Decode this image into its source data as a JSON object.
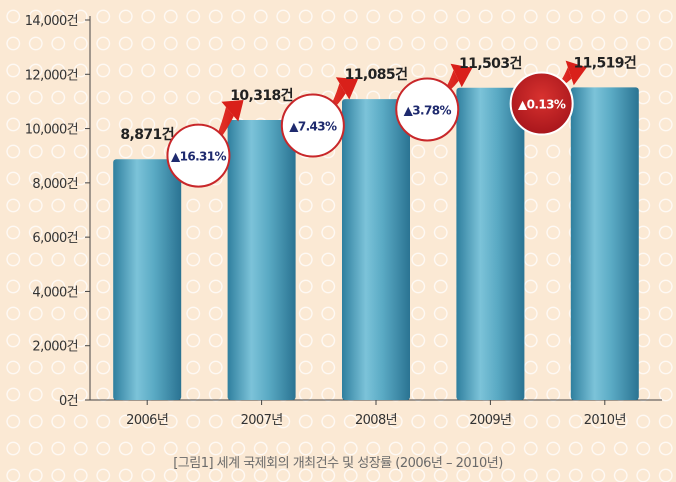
{
  "chart_data": {
    "type": "bar",
    "caption": "[그림1] 세계 국제회의 개최건수 및 성장률 (2006년 – 2010년)",
    "categories": [
      "2006년",
      "2007년",
      "2008년",
      "2009년",
      "2010년"
    ],
    "values": [
      8871,
      10318,
      11085,
      11503,
      11519
    ],
    "value_labels": [
      "8,871건",
      "10,318건",
      "11,085건",
      "11,503건",
      "11,519건"
    ],
    "growth_rates": [
      "▲16.31%",
      "▲7.43%",
      "▲3.78%",
      "▲0.13%"
    ],
    "y_ticks": [
      "0건",
      "2,000건",
      "4,000건",
      "6,000건",
      "8,000건",
      "10,000건",
      "12,000건",
      "14,000건"
    ],
    "ylim": [
      0,
      14000
    ],
    "grid": false,
    "colors": {
      "bar": "#4a9ab5",
      "growth_text": "#1e2a6e",
      "highlight_circle": "#c8272a",
      "arrow": "#e03a2a"
    }
  }
}
